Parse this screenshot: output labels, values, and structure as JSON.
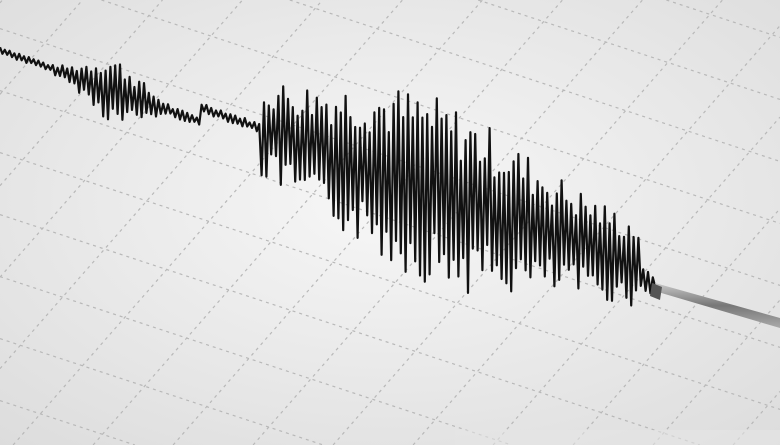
{
  "image": {
    "subject": "seismograph-trace",
    "colors": {
      "paper": "#f2f2f2",
      "grid": "#b8b8b8",
      "trace": "#111111",
      "stylus": "#8a8a8a"
    }
  },
  "watermark": {
    "text": ""
  }
}
